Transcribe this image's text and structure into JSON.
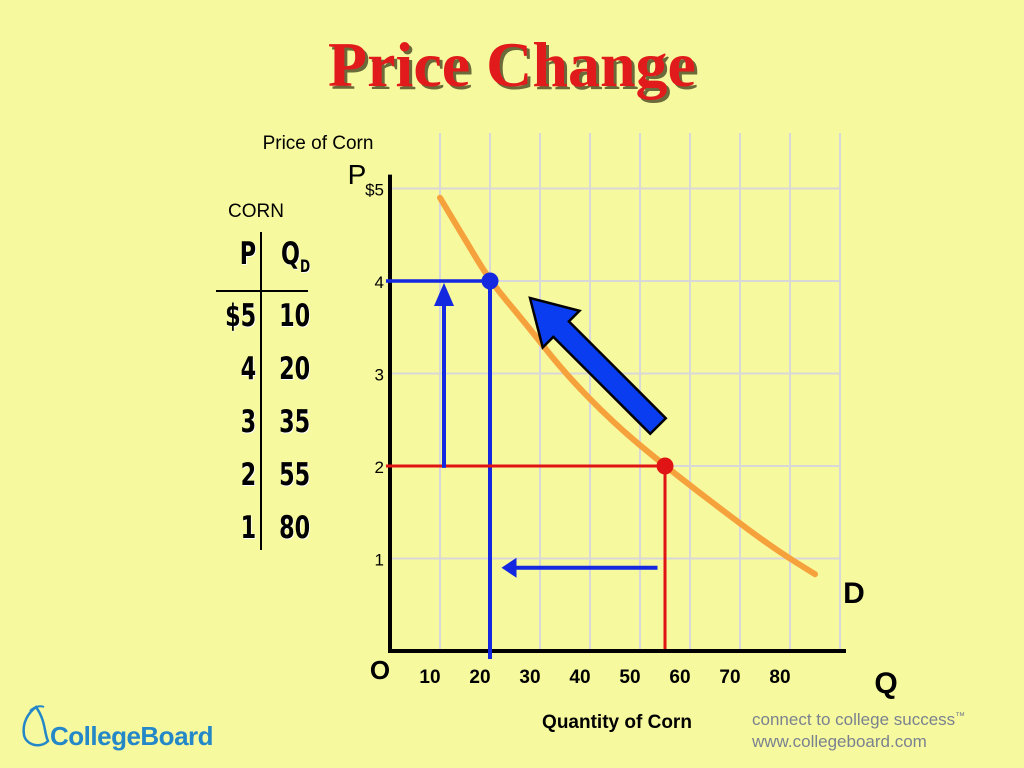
{
  "title": "Price Change",
  "schedule": {
    "caption": "CORN",
    "header_p": "P",
    "header_q": "Q",
    "header_q_sub": "D",
    "rows": [
      {
        "p": "$5",
        "q": "10"
      },
      {
        "p": "4",
        "q": "20"
      },
      {
        "p": "3",
        "q": "35"
      },
      {
        "p": "2",
        "q": "55"
      },
      {
        "p": "1",
        "q": "80"
      }
    ]
  },
  "chart_data": {
    "type": "line",
    "ylabel": "Price of Corn",
    "ylabel_symbol": "P",
    "xlabel": "Quantity of Corn",
    "xlabel_symbol": "Q",
    "origin_label": "O",
    "curve_label": "D",
    "ylim": [
      0,
      5
    ],
    "xlim": [
      0,
      90
    ],
    "y_ticks": [
      "$5",
      "4",
      "3",
      "2",
      "1"
    ],
    "x_ticks": [
      "10",
      "20",
      "30",
      "40",
      "50",
      "60",
      "70",
      "80"
    ],
    "grid": true,
    "demand_curve": [
      {
        "q": 10,
        "p": 4.9
      },
      {
        "q": 15,
        "p": 4.45
      },
      {
        "q": 20,
        "p": 4.0
      },
      {
        "q": 27,
        "p": 3.55
      },
      {
        "q": 35,
        "p": 3.0
      },
      {
        "q": 45,
        "p": 2.45
      },
      {
        "q": 55,
        "p": 2.0
      },
      {
        "q": 67,
        "p": 1.5
      },
      {
        "q": 77,
        "p": 1.1
      },
      {
        "q": 85,
        "p": 0.83
      }
    ],
    "points": [
      {
        "q": 20,
        "p": 4,
        "color": "#1428e0"
      },
      {
        "q": 55,
        "p": 2,
        "color": "#e01414"
      }
    ],
    "colors": {
      "curve": "#f6a23c",
      "blue": "#1428e0",
      "red": "#e01414",
      "arrow_fill": "#0a3df0"
    }
  },
  "footer": {
    "logo_text": "CollegeBoard",
    "tagline_line1": "connect to college success",
    "tagline_tm": "™",
    "tagline_line2": "www.collegeboard.com"
  }
}
